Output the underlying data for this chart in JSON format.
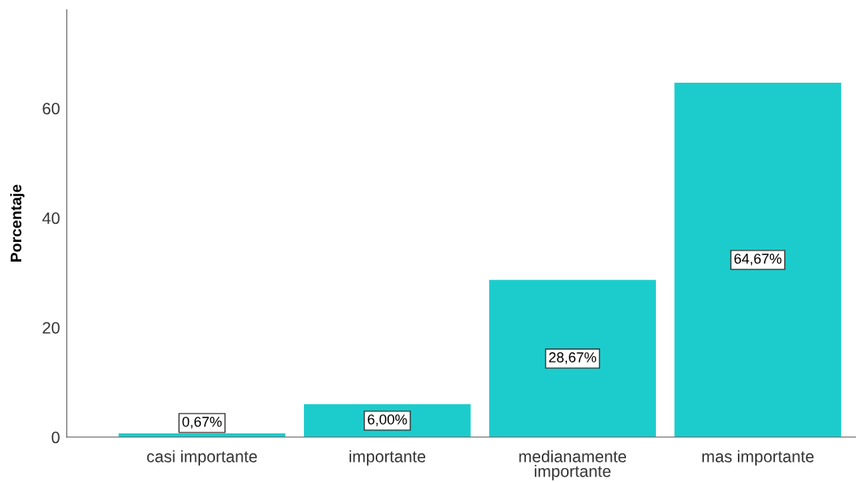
{
  "chart_data": {
    "type": "bar",
    "ylabel": "Porcentaje",
    "categories": [
      "casi importante",
      "importante",
      "medianamente\nimportante",
      "mas importante"
    ],
    "values": [
      0.67,
      6.0,
      28.67,
      64.67
    ],
    "color": "#1ccccc",
    "value_labels": [
      "0,67%",
      "6,00%",
      "28,67%",
      "64,67%"
    ],
    "ylim": [
      0,
      78
    ],
    "yticks": [
      0,
      20,
      40,
      60
    ],
    "grid": false,
    "legend": false
  }
}
